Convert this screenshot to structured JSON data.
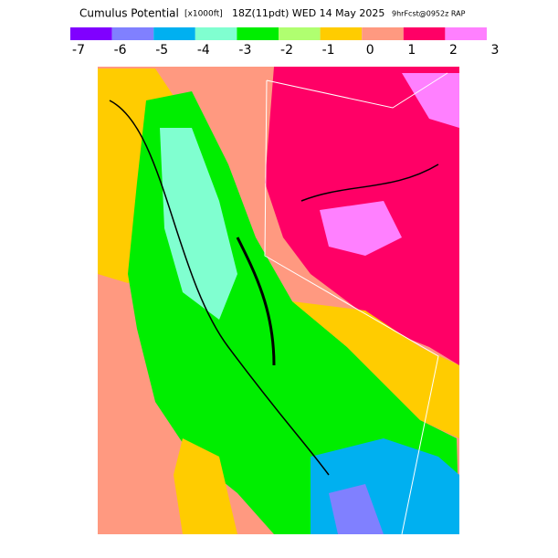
{
  "header": {
    "title": "Cumulus Potential",
    "units": "[x1000ft]",
    "valid": "18Z(11pdt) WED 14 May 2025",
    "forecast": "9hrFcst@0952z RAP"
  },
  "colorbar": {
    "ticks": [
      -7,
      -6,
      -5,
      -4,
      -3,
      -2,
      -1,
      0,
      1,
      2,
      3
    ],
    "colors": [
      "#8000ff",
      "#8080ff",
      "#00b0f0",
      "#80ffd0",
      "#00ee00",
      "#b0ff70",
      "#ffcc00",
      "#ff9980",
      "#ff0066",
      "#ff80ff"
    ]
  }
}
